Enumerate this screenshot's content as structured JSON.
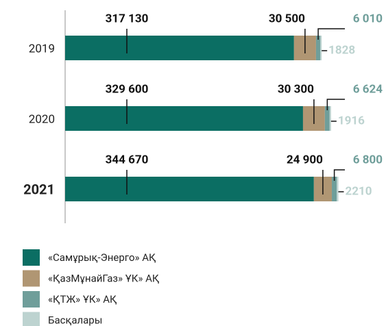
{
  "chart_data": {
    "type": "stacked-bar-horizontal",
    "categories": [
      "2019",
      "2020",
      "2021"
    ],
    "series": [
      {
        "name": "«Самұрық-Энерго» АҚ",
        "color": "#0b6e63",
        "values": [
          317130,
          329600,
          344670
        ],
        "value_labels": [
          "317 130",
          "329 600",
          "344 670"
        ]
      },
      {
        "name": "«ҚазМұнайГаз» ҰК» АҚ",
        "color": "#b09673",
        "values": [
          30500,
          30300,
          24900
        ],
        "value_labels": [
          "30 500",
          "30 300",
          "24 900"
        ]
      },
      {
        "name": "«ҚТЖ» ҰК» АҚ",
        "color": "#6f9e9a",
        "values": [
          6010,
          6624,
          6800
        ],
        "value_labels": [
          "6 010",
          "6 624",
          "6 800"
        ]
      },
      {
        "name": "Басқалары",
        "color": "#bdd3d0",
        "values": [
          1828,
          1916,
          2210
        ]
      }
    ]
  }
}
